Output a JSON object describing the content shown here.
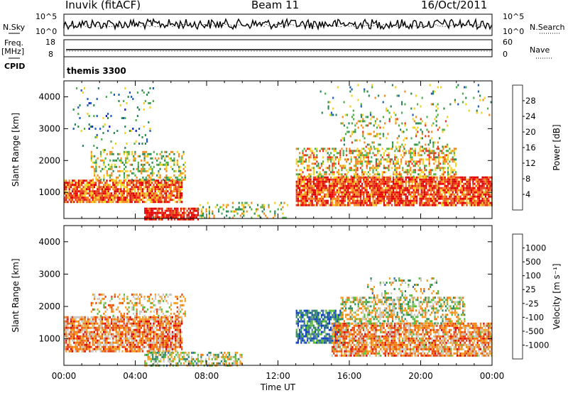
{
  "header": {
    "station": "Inuvik (fitACF)",
    "beam": "Beam 11",
    "date": "16/Oct/2011"
  },
  "top_panels": {
    "nsky_label": "N.Sky",
    "nsky_ticks": [
      "10^5",
      "10^0"
    ],
    "nsearch_label": "N.Search",
    "nsearch_ticks": [
      "10^5",
      "10^0"
    ],
    "freq_label": "Freq.",
    "freq_unit": "[MHz]",
    "freq_ticks": [
      "18",
      "8"
    ],
    "nave_label": "Nave",
    "nave_ticks": [
      "60",
      "0"
    ],
    "cpid_label": "CPID",
    "cpid_value": "themis 3300"
  },
  "chart_data": [
    {
      "type": "heatmap",
      "parameter": "power",
      "ylabel": "Slant Range [km]",
      "yticks": [
        1000,
        2000,
        3000,
        4000
      ],
      "ylim": [
        180,
        4500
      ],
      "xlim": [
        0,
        24
      ],
      "colorbar_label": "Power [dB]",
      "colorbar_ticks": [
        4,
        8,
        12,
        16,
        20,
        24,
        28
      ],
      "colorbar_colors": [
        "#0a1edc",
        "#1f5fb8",
        "#2e8b57",
        "#4fb04a",
        "#f2d21e",
        "#f58a1f",
        "#ea3a1a",
        "#e30000"
      ],
      "scatter_regions": [
        {
          "t": [
            0.0,
            6.6
          ],
          "r": [
            700,
            1400
          ],
          "density": 0.85,
          "level": 0.78
        },
        {
          "t": [
            4.5,
            7.5
          ],
          "r": [
            180,
            520
          ],
          "density": 0.8,
          "level": 0.9
        },
        {
          "t": [
            1.5,
            6.8
          ],
          "r": [
            1400,
            2300
          ],
          "density": 0.35,
          "level": 0.5
        },
        {
          "t": [
            0.5,
            5.0
          ],
          "r": [
            2300,
            4300
          ],
          "density": 0.06,
          "level": 0.35
        },
        {
          "t": [
            7.5,
            12.5
          ],
          "r": [
            180,
            700
          ],
          "density": 0.25,
          "level": 0.5
        },
        {
          "t": [
            13.0,
            24.0
          ],
          "r": [
            600,
            1500
          ],
          "density": 0.85,
          "level": 0.82
        },
        {
          "t": [
            13.0,
            22.0
          ],
          "r": [
            1500,
            2400
          ],
          "density": 0.45,
          "level": 0.6
        },
        {
          "t": [
            15.5,
            21.5
          ],
          "r": [
            2400,
            3400
          ],
          "density": 0.18,
          "level": 0.55
        },
        {
          "t": [
            14.0,
            24.0
          ],
          "r": [
            3400,
            4400
          ],
          "density": 0.05,
          "level": 0.4
        }
      ]
    },
    {
      "type": "heatmap",
      "parameter": "velocity",
      "ylabel": "Slant Range [km]",
      "yticks": [
        1000,
        2000,
        3000,
        4000
      ],
      "ylim": [
        180,
        4500
      ],
      "xlim": [
        0,
        24
      ],
      "xlabel": "Time UT",
      "xticks": [
        "00:00",
        "04:00",
        "08:00",
        "12:00",
        "16:00",
        "20:00",
        "00:00"
      ],
      "colorbar_label": "Velocity [m s⁻¹]",
      "colorbar_ticks": [
        "1000",
        "500",
        "100",
        "25",
        "-25",
        "-100",
        "-500",
        "-1000"
      ],
      "colorbar_colors": [
        "#1040c0",
        "#3e6fa8",
        "#2f8a5a",
        "#5cbd3a",
        "#c8c8c0",
        "#f5a020",
        "#f07a10",
        "#e84010",
        "#e00000"
      ],
      "scatter_regions": [
        {
          "t": [
            0.0,
            6.6
          ],
          "r": [
            600,
            1700
          ],
          "density": 0.8,
          "level": 0.7
        },
        {
          "t": [
            1.5,
            6.8
          ],
          "r": [
            1700,
            2400
          ],
          "density": 0.3,
          "level": 0.6
        },
        {
          "t": [
            4.5,
            10.0
          ],
          "r": [
            180,
            600
          ],
          "density": 0.55,
          "level": 0.45
        },
        {
          "t": [
            13.0,
            15.5
          ],
          "r": [
            900,
            1900
          ],
          "density": 0.75,
          "level": 0.2
        },
        {
          "t": [
            15.0,
            24.0
          ],
          "r": [
            500,
            1500
          ],
          "density": 0.8,
          "level": 0.68
        },
        {
          "t": [
            15.5,
            22.5
          ],
          "r": [
            1500,
            2300
          ],
          "density": 0.55,
          "level": 0.5
        },
        {
          "t": [
            17.0,
            21.0
          ],
          "r": [
            2300,
            2900
          ],
          "density": 0.2,
          "level": 0.45
        }
      ]
    }
  ]
}
